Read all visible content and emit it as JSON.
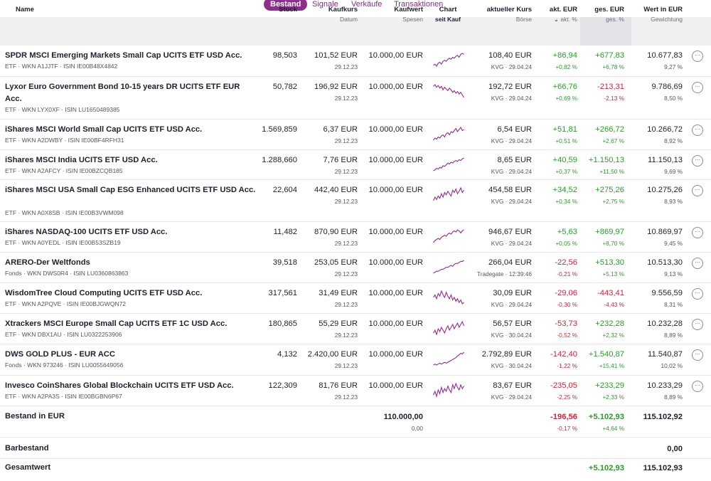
{
  "tabs": [
    "Bestand",
    "Signale",
    "Verkäufe",
    "Transaktionen"
  ],
  "header": {
    "name": "Name",
    "stueck": "Stück",
    "kaufkurs": "Kaufkurs",
    "kaufkurs_sub": "Datum",
    "kaufwert": "Kaufwert",
    "kaufwert_sub": "Spesen",
    "chart": "Chart",
    "chart_sub": "seit Kauf",
    "kurs": "aktueller Kurs",
    "kurs_sub": "Börse",
    "akt": "akt. EUR",
    "akt_sub": "akt. %",
    "ges": "ges. EUR",
    "ges_sub": "ges. %",
    "wert": "Wert in EUR",
    "wert_sub": "Gewichtung"
  },
  "rows": [
    {
      "name": "SPDR MSCI Emerging Markets Small Cap UCITS ETF USD Acc.",
      "meta": "ETF · WKN A1JJTF · ISIN IE00B48X4842",
      "stueck": "98,503",
      "kaufkurs": "101,52 EUR",
      "datum": "29.12.23",
      "kaufwert": "10.000,00 EUR",
      "kurs": "108,40 EUR",
      "boerse": "KVG · 29.04.24",
      "akt_eur": "+86,94",
      "akt_pct": "+0,82 %",
      "ges_eur": "+677,83",
      "ges_pct": "+6,78 %",
      "wert": "10.677,83",
      "gewicht": "9,27 %",
      "akt_sign": "pos",
      "ges_sign": "pos",
      "spark": [
        6,
        7,
        5,
        8,
        9,
        7,
        10,
        11,
        10,
        12,
        13,
        12,
        14,
        13,
        15,
        16,
        14,
        17,
        18,
        17
      ]
    },
    {
      "name": "Lyxor Euro Government Bond 10-15 years DR UCITS ETF EUR Acc.",
      "meta": "ETF · WKN LYX0XF · ISIN LU1650489385",
      "stueck": "50,782",
      "kaufkurs": "196,92 EUR",
      "datum": "29.12.23",
      "kaufwert": "10.000,00 EUR",
      "kurs": "192,72 EUR",
      "boerse": "KVG · 29.04.24",
      "akt_eur": "+66,76",
      "akt_pct": "+0,69 %",
      "ges_eur": "-213,31",
      "ges_pct": "-2,13 %",
      "wert": "9.786,69",
      "gewicht": "8,50 %",
      "akt_sign": "pos",
      "ges_sign": "neg",
      "spark": [
        16,
        18,
        15,
        17,
        14,
        16,
        12,
        15,
        13,
        11,
        14,
        12,
        9,
        11,
        8,
        10,
        7,
        9,
        6,
        3
      ]
    },
    {
      "name": "iShares MSCI World Small Cap UCITS ETF USD Acc.",
      "meta": "ETF · WKN A2DWBY · ISIN IE00BF4RFH31",
      "stueck": "1.569,859",
      "kaufkurs": "6,37 EUR",
      "datum": "29.12.23",
      "kaufwert": "10.000,00 EUR",
      "kurs": "6,54 EUR",
      "boerse": "KVG · 29.04.24",
      "akt_eur": "+51,81",
      "akt_pct": "+0,51 %",
      "ges_eur": "+266,72",
      "ges_pct": "+2,67 %",
      "wert": "10.266,72",
      "gewicht": "8,92 %",
      "akt_sign": "pos",
      "ges_sign": "pos",
      "spark": [
        5,
        7,
        6,
        8,
        7,
        9,
        10,
        8,
        11,
        12,
        10,
        13,
        12,
        14,
        16,
        13,
        15,
        17,
        14,
        15
      ]
    },
    {
      "name": "iShares MSCI India UCITS ETF USD Acc.",
      "meta": "ETF · WKN A2AFCY · ISIN IE00BZCQB185",
      "stueck": "1.288,660",
      "kaufkurs": "7,76 EUR",
      "datum": "29.12.23",
      "kaufwert": "10.000,00 EUR",
      "kurs": "8,65 EUR",
      "boerse": "KVG · 29.04.24",
      "akt_eur": "+40,59",
      "akt_pct": "+0,37 %",
      "ges_eur": "+1.150,13",
      "ges_pct": "+11,50 %",
      "wert": "11.150,13",
      "gewicht": "9,69 %",
      "akt_sign": "pos",
      "ges_sign": "pos",
      "spark": [
        4,
        5,
        7,
        6,
        8,
        7,
        10,
        9,
        11,
        13,
        12,
        14,
        13,
        15,
        16,
        15,
        17,
        16,
        18,
        19
      ]
    },
    {
      "name": "iShares MSCI USA Small Cap ESG Enhanced UCITS ETF USD Acc.",
      "meta": "ETF · WKN A0X8SB · ISIN IE00B3VWM098",
      "stueck": "22,604",
      "kaufkurs": "442,40 EUR",
      "datum": "29.12.23",
      "kaufwert": "10.000,00 EUR",
      "kurs": "454,58 EUR",
      "boerse": "KVG · 29.04.24",
      "akt_eur": "+34,52",
      "akt_pct": "+0,34 %",
      "ges_eur": "+275,26",
      "ges_pct": "+2,75 %",
      "wert": "10.275,26",
      "gewicht": "8,93 %",
      "akt_sign": "pos",
      "ges_sign": "pos",
      "spark": [
        6,
        9,
        7,
        10,
        8,
        12,
        9,
        13,
        11,
        14,
        12,
        10,
        15,
        13,
        16,
        12,
        14,
        17,
        13,
        15
      ]
    },
    {
      "name": "iShares NASDAQ-100 UCITS ETF USD Acc.",
      "meta": "ETF · WKN A0YEDL · ISIN IE00B53SZB19",
      "stueck": "11,482",
      "kaufkurs": "870,90 EUR",
      "datum": "29.12.23",
      "kaufwert": "10.000,00 EUR",
      "kurs": "946,67 EUR",
      "boerse": "KVG · 29.04.24",
      "akt_eur": "+5,63",
      "akt_pct": "+0,05 %",
      "ges_eur": "+869,97",
      "ges_pct": "+8,70 %",
      "wert": "10.869,97",
      "gewicht": "9,45 %",
      "akt_sign": "pos",
      "ges_sign": "pos",
      "spark": [
        5,
        7,
        8,
        9,
        8,
        10,
        11,
        12,
        11,
        13,
        14,
        13,
        15,
        16,
        15,
        17,
        16,
        14,
        16,
        17
      ]
    },
    {
      "name": "ARERO-Der Weltfonds",
      "meta": "Fonds · WKN DWS0R4 · ISIN LU0360863863",
      "stueck": "39,518",
      "kaufkurs": "253,05 EUR",
      "datum": "29.12.23",
      "kaufwert": "10.000,00 EUR",
      "kurs": "266,04 EUR",
      "boerse": "Tradegate · 12:39:46",
      "akt_eur": "-22,56",
      "akt_pct": "-0,21 %",
      "ges_eur": "+513,30",
      "ges_pct": "+5,13 %",
      "wert": "10.513,30",
      "gewicht": "9,13 %",
      "akt_sign": "neg",
      "ges_sign": "pos",
      "spark": [
        5,
        6,
        7,
        7,
        8,
        9,
        9,
        10,
        11,
        11,
        12,
        13,
        12,
        14,
        15,
        15,
        16,
        17,
        17,
        18
      ]
    },
    {
      "name": "WisdomTree Cloud Computing UCITS ETF USD Acc.",
      "meta": "ETF · WKN A2PQVE · ISIN IE00BJGWQN72",
      "stueck": "317,561",
      "kaufkurs": "31,49 EUR",
      "datum": "29.12.23",
      "kaufwert": "10.000,00 EUR",
      "kurs": "30,09 EUR",
      "boerse": "KVG · 29.04.24",
      "akt_eur": "-29,06",
      "akt_pct": "-0,30 %",
      "ges_eur": "-443,41",
      "ges_pct": "-4,43 %",
      "wert": "9.556,59",
      "gewicht": "8,31 %",
      "akt_sign": "neg",
      "ges_sign": "neg",
      "spark": [
        12,
        14,
        11,
        15,
        13,
        17,
        14,
        12,
        16,
        13,
        11,
        14,
        10,
        12,
        9,
        11,
        8,
        10,
        7,
        8
      ]
    },
    {
      "name": "Xtrackers MSCI Europe Small Cap UCITS ETF 1C USD Acc.",
      "meta": "ETF · WKN DBX1AU · ISIN LU0322253906",
      "stueck": "180,865",
      "kaufkurs": "55,29 EUR",
      "datum": "29.12.23",
      "kaufwert": "10.000,00 EUR",
      "kurs": "56,57 EUR",
      "boerse": "KVG · 30.04.24",
      "akt_eur": "-53,73",
      "akt_pct": "-0,52 %",
      "ges_eur": "+232,28",
      "ges_pct": "+2,32 %",
      "wert": "10.232,28",
      "gewicht": "8,89 %",
      "akt_sign": "neg",
      "ges_sign": "pos",
      "spark": [
        8,
        10,
        7,
        11,
        9,
        12,
        10,
        8,
        11,
        13,
        10,
        12,
        14,
        11,
        13,
        15,
        12,
        14,
        16,
        13
      ]
    },
    {
      "name": "DWS GOLD PLUS - EUR ACC",
      "meta": "Fonds · WKN 973246 · ISIN LU0055649056",
      "stueck": "4,132",
      "kaufkurs": "2.420,00 EUR",
      "datum": "29.12.23",
      "kaufwert": "10.000,00 EUR",
      "kurs": "2.792,89 EUR",
      "boerse": "KVG · 30.04.24",
      "akt_eur": "-142,40",
      "akt_pct": "-1,22 %",
      "ges_eur": "+1.540,87",
      "ges_pct": "+15,41 %",
      "wert": "11.540,87",
      "gewicht": "10,02 %",
      "akt_sign": "neg",
      "ges_sign": "pos",
      "spark": [
        5,
        6,
        5,
        6,
        7,
        6,
        7,
        8,
        7,
        8,
        9,
        10,
        11,
        12,
        13,
        15,
        16,
        18,
        17,
        19
      ]
    },
    {
      "name": "Invesco CoinShares Global Blockchain UCITS ETF USD Acc.",
      "meta": "ETF · WKN A2PA3S · ISIN IE00BGBN6P67",
      "stueck": "122,309",
      "kaufkurs": "81,76 EUR",
      "datum": "29.12.23",
      "kaufwert": "10.000,00 EUR",
      "kurs": "83,67 EUR",
      "boerse": "KVG · 29.04.24",
      "akt_eur": "-235,05",
      "akt_pct": "-2,25 %",
      "ges_eur": "+233,29",
      "ges_pct": "+2,33 %",
      "wert": "10.233,29",
      "gewicht": "8,89 %",
      "akt_sign": "neg",
      "ges_sign": "pos",
      "spark": [
        7,
        10,
        6,
        11,
        8,
        13,
        9,
        12,
        10,
        14,
        11,
        9,
        15,
        12,
        16,
        13,
        11,
        15,
        12,
        14
      ]
    }
  ],
  "summary": {
    "bestand_label": "Bestand in EUR",
    "kaufwert": "110.000,00",
    "spesen": "0,00",
    "akt_eur": "-196,56",
    "akt_pct": "-0,17 %",
    "ges_eur": "+5.102,93",
    "ges_pct": "+4,64 %",
    "wert": "115.102,92",
    "barbestand_label": "Barbestand",
    "barbestand": "0,00",
    "gesamtwert_label": "Gesamtwert",
    "gesamt_ges": "+5.102,93",
    "gesamtwert": "115.102,93"
  },
  "more_glyph": "···",
  "sort_glyph": "⌄",
  "colors": {
    "accent": "#8e2f8f",
    "positive": "#2e9a2e",
    "negative": "#c8283a"
  }
}
